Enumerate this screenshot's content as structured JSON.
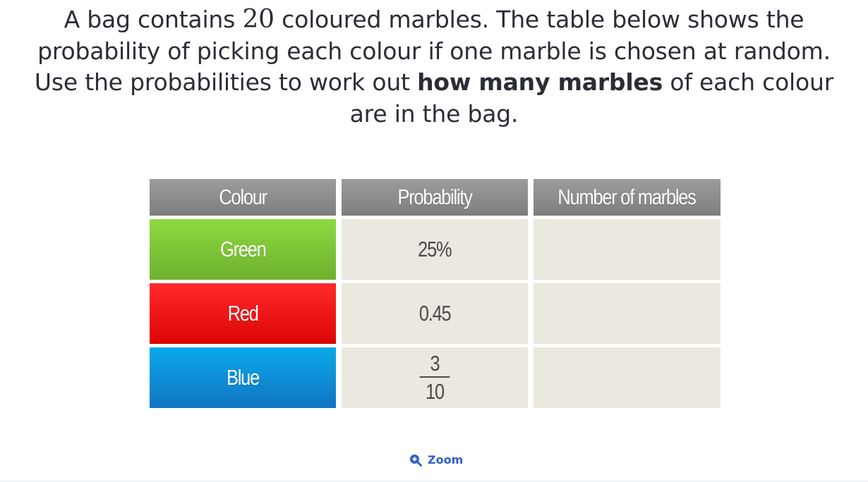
{
  "question": {
    "part1": "A bag contains ",
    "number": "20",
    "part2": " coloured marbles. The table below shows the probability of picking each colour if one marble is chosen at random. Use the probabilities to work out ",
    "bold": "how many marbles",
    "part3": " of each colour are in the bag."
  },
  "table": {
    "headers": [
      "Colour",
      "Probability",
      "Number of marbles"
    ],
    "rows": [
      {
        "colour": "Green",
        "probability": "25%",
        "marbles": ""
      },
      {
        "colour": "Red",
        "probability": "0.45",
        "marbles": ""
      },
      {
        "colour": "Blue",
        "probability_numerator": "3",
        "probability_denominator": "10",
        "marbles": ""
      }
    ]
  },
  "colors": {
    "green": "#7cc437",
    "red": "#ee1111",
    "blue": "#0b8fd9",
    "header": "#8c8c8c",
    "cell_bg": "#ebe8df",
    "link": "#2f5fc4"
  },
  "zoom": {
    "label": "Zoom",
    "icon": "zoom-in-icon"
  }
}
